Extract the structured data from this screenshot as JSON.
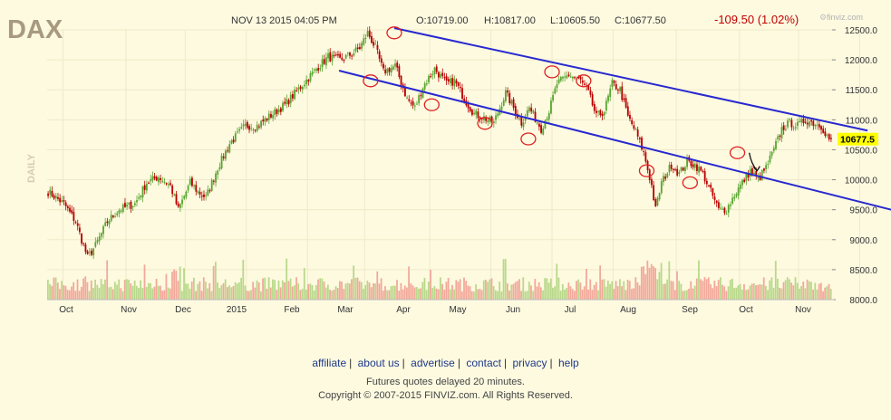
{
  "chart_data": {
    "type": "candlestick",
    "symbol": "DAX",
    "period_label": "DAILY",
    "timestamp": "NOV 13 2015 04:05 PM",
    "ohlc_labels": {
      "open": "O:10719.00",
      "high": "H:10817.00",
      "low": "L:10605.50",
      "close": "C:10677.50"
    },
    "change": "-109.50 (1.02%)",
    "last_price": "10677.5",
    "brand": "finviz.com",
    "colors": {
      "up": "#5aa532",
      "down": "#b80000",
      "volume_up": "#b8d88a",
      "volume_down": "#f2a89a",
      "trendline": "#2828d0",
      "annotation": "#e02020",
      "last_price_bg": "#ffff00",
      "background": "#fdfae0"
    },
    "y_ticks": [
      "12500.0",
      "12000.0",
      "11500.0",
      "11000.0",
      "10500.0",
      "10000.0",
      "9500.0",
      "9000.0",
      "8500.0",
      "8000.0"
    ],
    "ylim": [
      8000,
      12600
    ],
    "x_ticks": [
      "Oct",
      "Nov",
      "Dec",
      "2015",
      "Feb",
      "Mar",
      "Apr",
      "May",
      "Jun",
      "Jul",
      "Aug",
      "Sep",
      "Oct",
      "Nov"
    ],
    "anchors": [
      [
        0,
        9800
      ],
      [
        8,
        9600
      ],
      [
        14,
        9300
      ],
      [
        20,
        8700
      ],
      [
        24,
        8900
      ],
      [
        30,
        9300
      ],
      [
        36,
        9500
      ],
      [
        44,
        9600
      ],
      [
        50,
        9950
      ],
      [
        56,
        10050
      ],
      [
        62,
        9900
      ],
      [
        66,
        9500
      ],
      [
        72,
        9950
      ],
      [
        76,
        9800
      ],
      [
        80,
        9700
      ],
      [
        86,
        10200
      ],
      [
        92,
        10600
      ],
      [
        100,
        10900
      ],
      [
        106,
        10900
      ],
      [
        114,
        11100
      ],
      [
        120,
        11250
      ],
      [
        128,
        11550
      ],
      [
        136,
        11850
      ],
      [
        142,
        12050
      ],
      [
        148,
        12000
      ],
      [
        154,
        12100
      ],
      [
        158,
        12200
      ],
      [
        162,
        12450
      ],
      [
        166,
        12200
      ],
      [
        170,
        11800
      ],
      [
        176,
        11900
      ],
      [
        182,
        11350
      ],
      [
        186,
        11200
      ],
      [
        190,
        11550
      ],
      [
        196,
        11850
      ],
      [
        202,
        11600
      ],
      [
        206,
        11650
      ],
      [
        212,
        11300
      ],
      [
        216,
        11100
      ],
      [
        220,
        11050
      ],
      [
        226,
        10950
      ],
      [
        232,
        11450
      ],
      [
        236,
        11200
      ],
      [
        240,
        10950
      ],
      [
        244,
        11200
      ],
      [
        250,
        10850
      ],
      [
        254,
        11150
      ],
      [
        258,
        11600
      ],
      [
        264,
        11750
      ],
      [
        270,
        11650
      ],
      [
        274,
        11450
      ],
      [
        278,
        11050
      ],
      [
        282,
        11150
      ],
      [
        286,
        11600
      ],
      [
        290,
        11500
      ],
      [
        294,
        11050
      ],
      [
        298,
        10800
      ],
      [
        302,
        10450
      ],
      [
        306,
        9900
      ],
      [
        308,
        9500
      ],
      [
        311,
        9950
      ],
      [
        316,
        10250
      ],
      [
        320,
        10100
      ],
      [
        324,
        10300
      ],
      [
        328,
        10250
      ],
      [
        332,
        10100
      ],
      [
        336,
        9800
      ],
      [
        340,
        9500
      ],
      [
        344,
        9500
      ],
      [
        348,
        9750
      ],
      [
        352,
        9950
      ],
      [
        356,
        10150
      ],
      [
        360,
        10000
      ],
      [
        364,
        10200
      ],
      [
        368,
        10500
      ],
      [
        372,
        10850
      ],
      [
        376,
        10950
      ],
      [
        380,
        10900
      ],
      [
        384,
        11000
      ],
      [
        388,
        10950
      ],
      [
        392,
        10900
      ],
      [
        396,
        10677.5
      ]
    ],
    "trendlines": [
      {
        "from": [
          148,
          11820
        ],
        "to": [
          428,
          9500
        ]
      },
      {
        "from": [
          176,
          12530
        ],
        "to": [
          416,
          10820
        ]
      }
    ],
    "annotations": [
      {
        "type": "circle",
        "x": 176,
        "y": 12450
      },
      {
        "type": "circle",
        "x": 164,
        "y": 11650
      },
      {
        "type": "circle",
        "x": 195,
        "y": 11250
      },
      {
        "type": "circle",
        "x": 222,
        "y": 10940
      },
      {
        "type": "circle",
        "x": 244,
        "y": 10680
      },
      {
        "type": "circle",
        "x": 256,
        "y": 11800
      },
      {
        "type": "circle",
        "x": 272,
        "y": 11650
      },
      {
        "type": "circle",
        "x": 304,
        "y": 10150
      },
      {
        "type": "circle",
        "x": 326,
        "y": 9950
      },
      {
        "type": "circle",
        "x": 350,
        "y": 10450
      },
      {
        "type": "arrow",
        "from": [
          356,
          10450
        ],
        "to": [
          360,
          10150
        ]
      }
    ]
  },
  "footer": {
    "links": [
      "affiliate",
      "about us",
      "advertise",
      "contact",
      "privacy",
      "help"
    ],
    "separator": "|",
    "note": "Futures quotes delayed 20 minutes.",
    "copyright": "Copyright © 2007-2015 FINVIZ.com. All Rights Reserved."
  }
}
